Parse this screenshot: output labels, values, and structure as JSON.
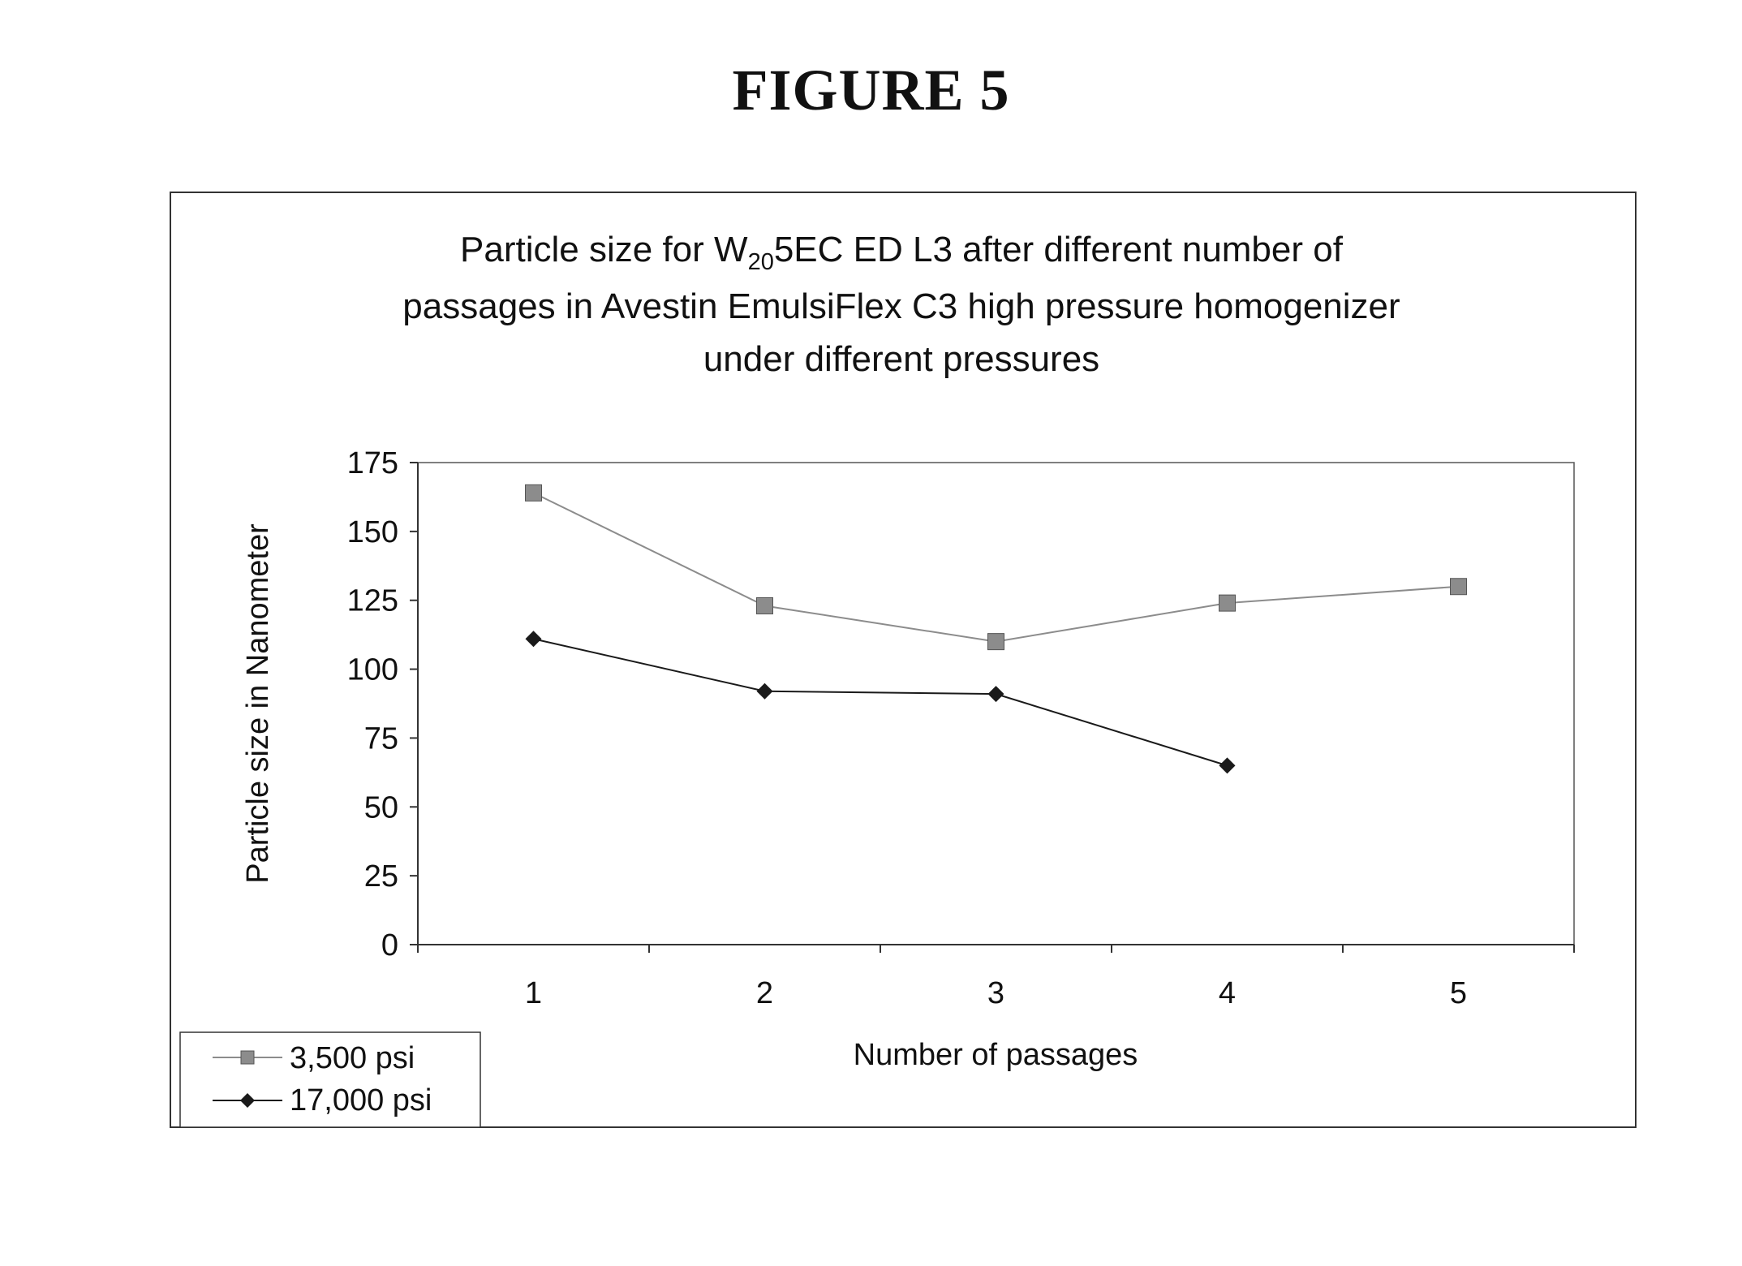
{
  "figure_label": "FIGURE 5",
  "colors": {
    "series_3500": "#8c8c8c",
    "series_17000": "#1a1a1a",
    "frame": "#333333"
  },
  "chart_data": {
    "type": "line",
    "title": {
      "line1_prefix": "Particle size for W",
      "line1_sub": "20",
      "line1_suffix": "5EC ED L3 after different number of",
      "line2": "passages in Avestin EmulsiFlex C3 high pressure homogenizer",
      "line3": "under different pressures"
    },
    "xlabel": "Number of passages",
    "ylabel": "Particle size in Nanometer",
    "x": [
      1,
      2,
      3,
      4,
      5
    ],
    "x_tick_labels": [
      "1",
      "2",
      "3",
      "4",
      "5"
    ],
    "y_ticks": [
      0,
      25,
      50,
      75,
      100,
      125,
      150,
      175
    ],
    "y_tick_labels": [
      "0",
      "25",
      "50",
      "75",
      "100",
      "125",
      "150",
      "175"
    ],
    "ylim": [
      0,
      175
    ],
    "grid": false,
    "legend_position": "bottom-left",
    "series": [
      {
        "name": "3,500 psi",
        "marker": "square",
        "color_key": "series_3500",
        "x": [
          1,
          2,
          3,
          4,
          5
        ],
        "y": [
          164,
          123,
          110,
          124,
          130
        ]
      },
      {
        "name": "17,000 psi",
        "marker": "diamond",
        "color_key": "series_17000",
        "x": [
          1,
          2,
          3,
          4
        ],
        "y": [
          111,
          92,
          91,
          65
        ]
      }
    ]
  }
}
